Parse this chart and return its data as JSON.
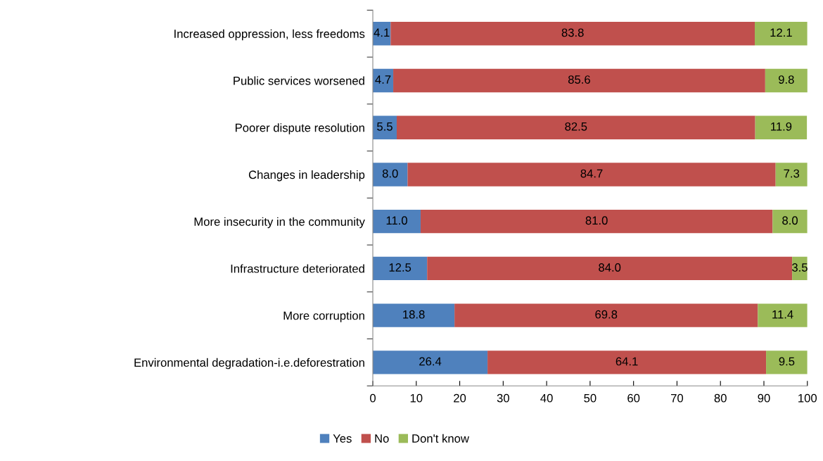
{
  "chart_data": {
    "type": "bar",
    "orientation": "horizontal",
    "stacked": true,
    "categories": [
      "Increased oppression, less freedoms",
      "Public services worsened",
      "Poorer dispute resolution",
      "Changes in leadership",
      "More insecurity in the community",
      "Infrastructure deteriorated",
      "More corruption",
      "Environmental degradation-i.e.deforestration"
    ],
    "series": [
      {
        "name": "Yes",
        "color": "#4f81bd",
        "values": [
          4.1,
          4.7,
          5.5,
          8.0,
          11.0,
          12.5,
          18.8,
          26.4
        ],
        "value_labels": [
          "4.1",
          "4.7",
          "5.5",
          "8.0",
          "11.0",
          "12.5",
          "18.8",
          "26.4"
        ]
      },
      {
        "name": "No",
        "color": "#c0504d",
        "values": [
          83.8,
          85.6,
          82.5,
          84.7,
          81.0,
          84.0,
          69.8,
          64.1
        ],
        "value_labels": [
          "83.8",
          "85.6",
          "82.5",
          "84.7",
          "81.0",
          "84.0",
          "69.8",
          "64.1"
        ]
      },
      {
        "name": "Don't know",
        "color": "#9bbb59",
        "values": [
          12.1,
          9.8,
          11.9,
          7.3,
          8.0,
          3.5,
          11.4,
          9.5
        ],
        "value_labels": [
          "12.1",
          "9.8",
          "11.9",
          "7.3",
          "8.0",
          "3.5",
          "11.4",
          "9.5"
        ]
      }
    ],
    "xlim": [
      0,
      100
    ],
    "xticks": [
      0,
      10,
      20,
      30,
      40,
      50,
      60,
      70,
      80,
      90,
      100
    ],
    "legend": "bottom",
    "grid": false
  }
}
